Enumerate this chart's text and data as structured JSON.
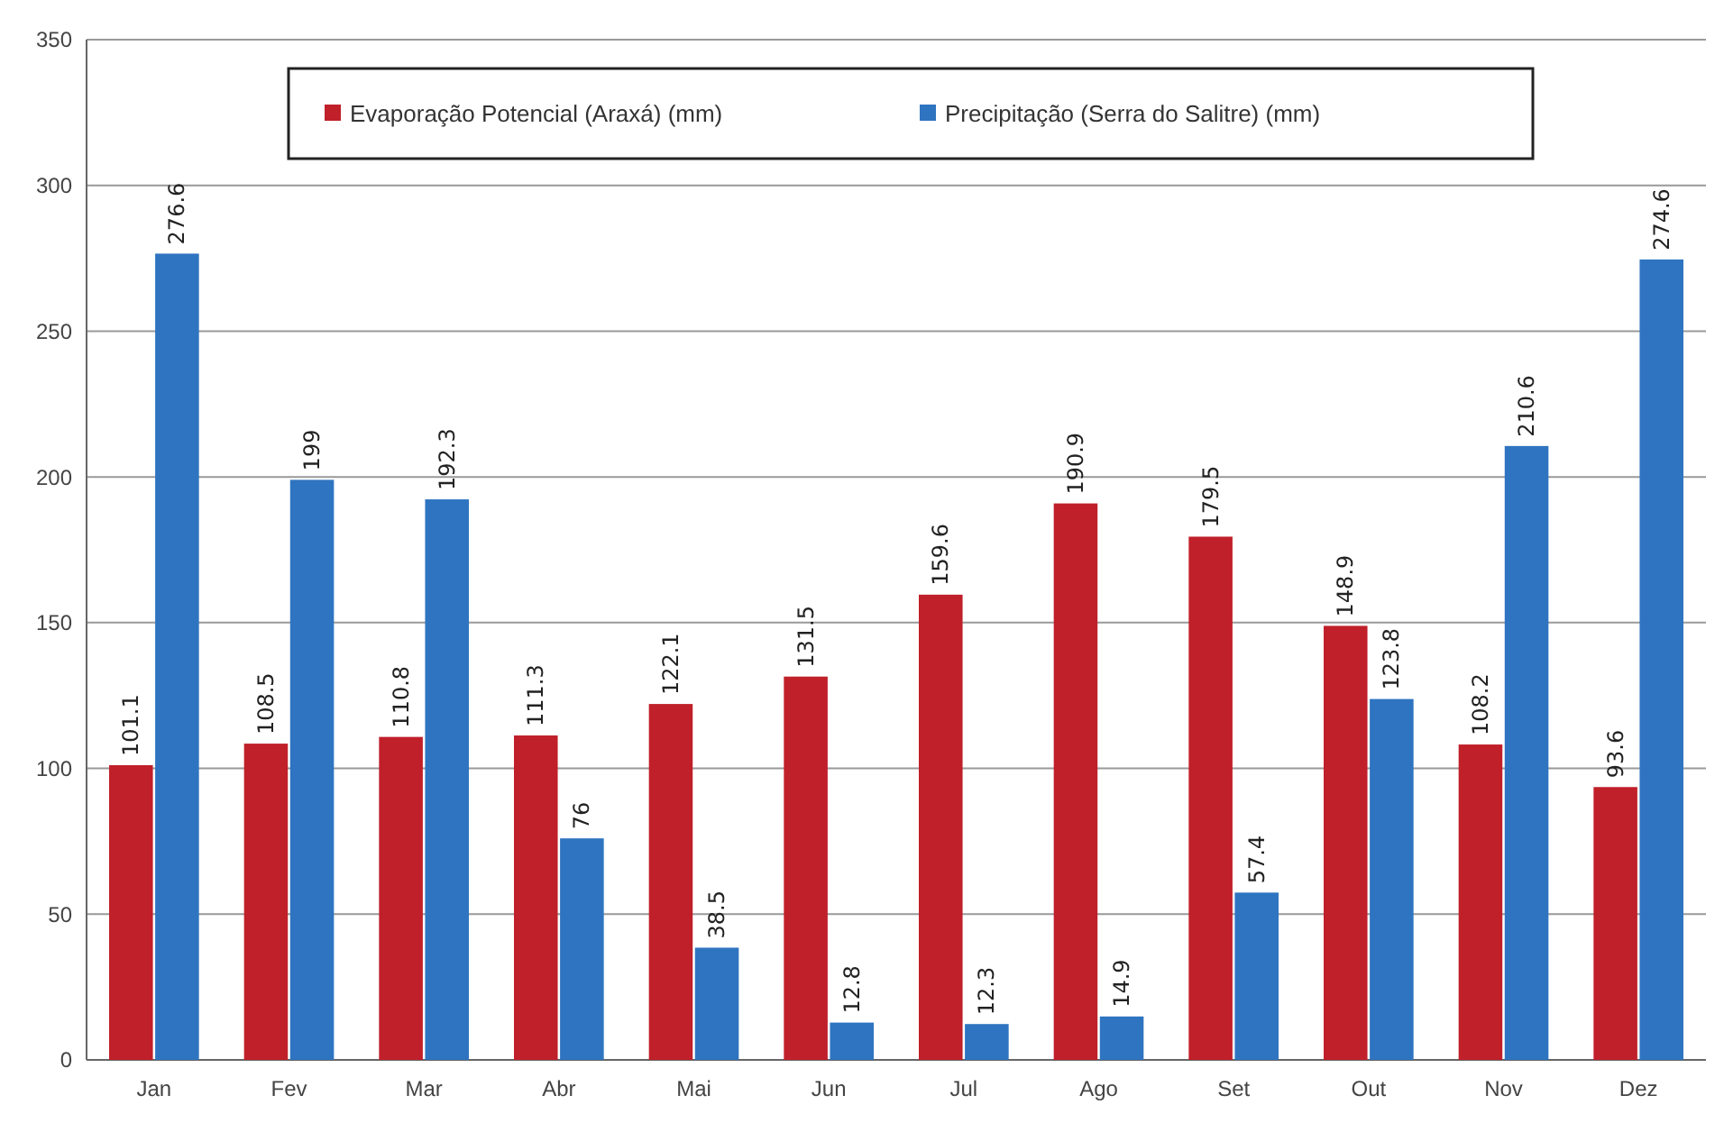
{
  "chart_data": {
    "type": "bar",
    "categories": [
      "Jan",
      "Fev",
      "Mar",
      "Abr",
      "Mai",
      "Jun",
      "Jul",
      "Ago",
      "Set",
      "Out",
      "Nov",
      "Dez"
    ],
    "series": [
      {
        "name": "Evaporação Potencial (Araxá) (mm)",
        "color": "#c0202a",
        "values": [
          101.1,
          108.5,
          110.8,
          111.3,
          122.1,
          131.5,
          159.6,
          190.9,
          179.5,
          148.9,
          108.2,
          93.6
        ]
      },
      {
        "name": "Precipitação (Serra do Salitre) (mm)",
        "color": "#2f74c0",
        "values": [
          276.6,
          199,
          192.3,
          76,
          38.5,
          12.8,
          12.3,
          14.9,
          57.4,
          123.8,
          210.6,
          274.6
        ]
      }
    ],
    "ylim": [
      0,
      350
    ],
    "yticks": [
      0,
      50,
      100,
      150,
      200,
      250,
      300,
      350
    ],
    "grid": "y",
    "legend": "top",
    "data_labels": true
  }
}
